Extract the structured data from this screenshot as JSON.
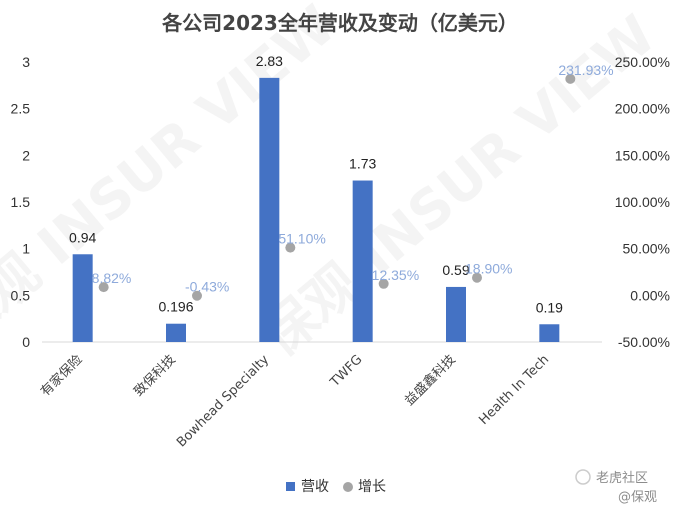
{
  "chart_data": {
    "type": "bar",
    "title": "各公司2023全年营收及变动（亿美元）",
    "categories": [
      "有家保险",
      "致保科技",
      "Bowhead Specialty",
      "TWFG",
      "益盛鑫科技",
      "Health In Tech"
    ],
    "series": [
      {
        "name": "营收",
        "kind": "bar",
        "axis": "left",
        "color": "#4472c4",
        "values": [
          0.94,
          0.196,
          2.83,
          1.73,
          0.59,
          0.19
        ],
        "labels": [
          "0.94",
          "0.196",
          "2.83",
          "1.73",
          "0.59",
          "0.19"
        ]
      },
      {
        "name": "增长",
        "kind": "scatter",
        "axis": "right",
        "color": "#a5a5a5",
        "values": [
          8.82,
          -0.43,
          51.1,
          12.35,
          18.9,
          231.93
        ],
        "labels": [
          "8.82%",
          "-0.43%",
          "51.10%",
          "12.35%",
          "18.90%",
          "231.93%"
        ]
      }
    ],
    "left_axis": {
      "ylim": [
        0,
        3
      ],
      "ticks": [
        0,
        0.5,
        1,
        1.5,
        2,
        2.5,
        3
      ],
      "tick_labels": [
        "0",
        "0.5",
        "1",
        "1.5",
        "2",
        "2.5",
        "3"
      ]
    },
    "right_axis": {
      "ylim": [
        -50,
        250
      ],
      "ticks": [
        -50,
        0,
        50,
        100,
        150,
        200,
        250
      ],
      "tick_labels": [
        "-50.00%",
        "0.00%",
        "50.00%",
        "100.00%",
        "150.00%",
        "200.00%",
        "250.00%"
      ]
    },
    "grid": false,
    "legend": "bottom",
    "legend_labels": [
      "营收",
      "增长"
    ]
  },
  "watermarks": {
    "brand": "老虎社区",
    "handle": "@保观",
    "background_text": "保观 INSUR VIEW"
  }
}
